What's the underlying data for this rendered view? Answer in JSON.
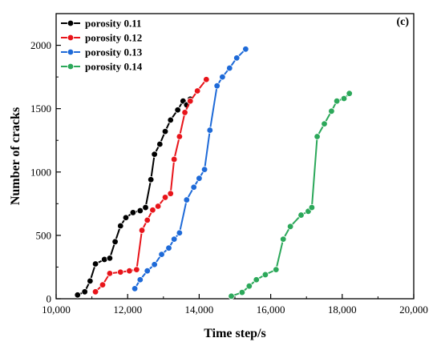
{
  "chart_data": {
    "type": "line",
    "panel_label": "(c)",
    "xlabel": "Time step/s",
    "ylabel": "Number of cracks",
    "xlim": [
      10000,
      20000
    ],
    "ylim": [
      0,
      2250
    ],
    "xticks": [
      10000,
      12000,
      14000,
      16000,
      18000,
      20000
    ],
    "xtick_labels": [
      "10,000",
      "12,000",
      "14,000",
      "16,000",
      "18,000",
      "20,000"
    ],
    "yticks": [
      0,
      500,
      1000,
      1500,
      2000
    ],
    "ytick_labels": [
      "0",
      "500",
      "1000",
      "1500",
      "2000"
    ],
    "legend_position": "top-left",
    "grid": false,
    "series": [
      {
        "name": "porosity 0.11",
        "color": "#000000",
        "x": [
          10600,
          10800,
          10950,
          11100,
          11350,
          11500,
          11650,
          11800,
          11950,
          12150,
          12350,
          12500,
          12650,
          12750,
          12900,
          13050,
          13200,
          13400,
          13550,
          13650,
          13750
        ],
        "y": [
          30,
          55,
          140,
          275,
          310,
          320,
          450,
          575,
          640,
          680,
          695,
          720,
          940,
          1140,
          1220,
          1320,
          1410,
          1490,
          1560,
          1530,
          1575
        ]
      },
      {
        "name": "porosity 0.12",
        "color": "#e8141a",
        "x": [
          11100,
          11300,
          11500,
          11800,
          12050,
          12250,
          12400,
          12550,
          12700,
          12850,
          13050,
          13200,
          13300,
          13450,
          13600,
          13750,
          13950,
          14200
        ],
        "y": [
          55,
          110,
          200,
          210,
          220,
          230,
          540,
          620,
          700,
          730,
          800,
          830,
          1100,
          1280,
          1470,
          1560,
          1640,
          1730
        ]
      },
      {
        "name": "porosity 0.13",
        "color": "#1e6ad8",
        "x": [
          12200,
          12350,
          12550,
          12750,
          12950,
          13150,
          13300,
          13450,
          13650,
          13850,
          14000,
          14150,
          14300,
          14500,
          14650,
          14850,
          15050,
          15300
        ],
        "y": [
          80,
          150,
          220,
          270,
          350,
          400,
          470,
          520,
          780,
          880,
          950,
          1020,
          1330,
          1680,
          1750,
          1820,
          1900,
          1970
        ]
      },
      {
        "name": "porosity 0.14",
        "color": "#2ca85a",
        "x": [
          14900,
          15200,
          15400,
          15600,
          15850,
          16150,
          16350,
          16550,
          16850,
          17050,
          17150,
          17300,
          17500,
          17700,
          17850,
          18050,
          18200
        ],
        "y": [
          20,
          50,
          100,
          150,
          190,
          230,
          470,
          570,
          660,
          690,
          720,
          1280,
          1380,
          1480,
          1560,
          1580,
          1620
        ]
      }
    ]
  }
}
